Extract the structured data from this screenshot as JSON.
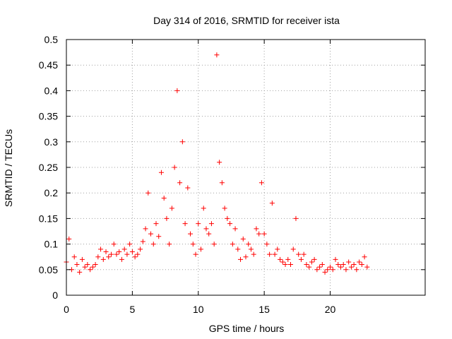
{
  "chart_data": {
    "type": "scatter",
    "title": "Day 314 of 2016, SRMTID for receiver ista",
    "xlabel": "GPS time / hours",
    "ylabel": "SRMTID / TECUs",
    "xlim": [
      0,
      27.2
    ],
    "ylim": [
      0,
      0.5
    ],
    "xticks": [
      "0",
      "5",
      "10",
      "15",
      "20"
    ],
    "yticks": [
      "0",
      "0.05",
      "0.1",
      "0.15",
      "0.2",
      "0.25",
      "0.3",
      "0.35",
      "0.4",
      "0.45",
      "0.5"
    ],
    "grid": true,
    "marker": "+",
    "color": "#ff0000",
    "series": [
      {
        "x": [
          0.0,
          0.2,
          0.4,
          0.6,
          0.8,
          1.0,
          1.2,
          1.4,
          1.6,
          1.8,
          2.0,
          2.2,
          2.4,
          2.6,
          2.8,
          3.0,
          3.2,
          3.4,
          3.6,
          3.8,
          4.0,
          4.2,
          4.4,
          4.6,
          4.8,
          5.0,
          5.2,
          5.4,
          5.6,
          5.8,
          6.0,
          6.2,
          6.4,
          6.6,
          6.8,
          7.0,
          7.2,
          7.4,
          7.6,
          7.8,
          8.0,
          8.2,
          8.4,
          8.6,
          8.8,
          9.0,
          9.2,
          9.4,
          9.6,
          9.8,
          10.0,
          10.2,
          10.4,
          10.6,
          10.8,
          11.0,
          11.2,
          11.4,
          11.6,
          11.8,
          12.0,
          12.2,
          12.4,
          12.6,
          12.8,
          13.0,
          13.2,
          13.4,
          13.6,
          13.8,
          14.0,
          14.2,
          14.4,
          14.6,
          14.8,
          15.0,
          15.2,
          15.4,
          15.6,
          15.8,
          16.0,
          16.2,
          16.4,
          16.6,
          16.8,
          17.0,
          17.2,
          17.4,
          17.6,
          17.8,
          18.0,
          18.2,
          18.4,
          18.6,
          18.8,
          19.0,
          19.2,
          19.4,
          19.6,
          19.8,
          20.0,
          20.2,
          20.4,
          20.6,
          20.8,
          21.0,
          21.2,
          21.4,
          21.6,
          21.8,
          22.0,
          22.2,
          22.4,
          22.6,
          22.8
        ],
        "y": [
          0.065,
          0.11,
          0.05,
          0.075,
          0.06,
          0.045,
          0.07,
          0.055,
          0.06,
          0.05,
          0.055,
          0.06,
          0.075,
          0.09,
          0.07,
          0.085,
          0.075,
          0.08,
          0.1,
          0.08,
          0.085,
          0.07,
          0.09,
          0.08,
          0.1,
          0.085,
          0.075,
          0.08,
          0.09,
          0.105,
          0.13,
          0.2,
          0.12,
          0.1,
          0.14,
          0.115,
          0.24,
          0.19,
          0.15,
          0.1,
          0.17,
          0.25,
          0.4,
          0.22,
          0.3,
          0.14,
          0.21,
          0.12,
          0.1,
          0.08,
          0.14,
          0.09,
          0.17,
          0.13,
          0.12,
          0.14,
          0.1,
          0.47,
          0.26,
          0.22,
          0.17,
          0.15,
          0.14,
          0.1,
          0.13,
          0.09,
          0.07,
          0.11,
          0.075,
          0.1,
          0.09,
          0.08,
          0.13,
          0.12,
          0.22,
          0.12,
          0.1,
          0.08,
          0.18,
          0.08,
          0.09,
          0.07,
          0.065,
          0.06,
          0.07,
          0.06,
          0.09,
          0.15,
          0.08,
          0.07,
          0.08,
          0.06,
          0.055,
          0.065,
          0.07,
          0.05,
          0.055,
          0.06,
          0.045,
          0.05,
          0.055,
          0.05,
          0.07,
          0.06,
          0.055,
          0.06,
          0.05,
          0.065,
          0.055,
          0.06,
          0.05,
          0.065,
          0.06,
          0.075,
          0.055
        ]
      }
    ]
  }
}
